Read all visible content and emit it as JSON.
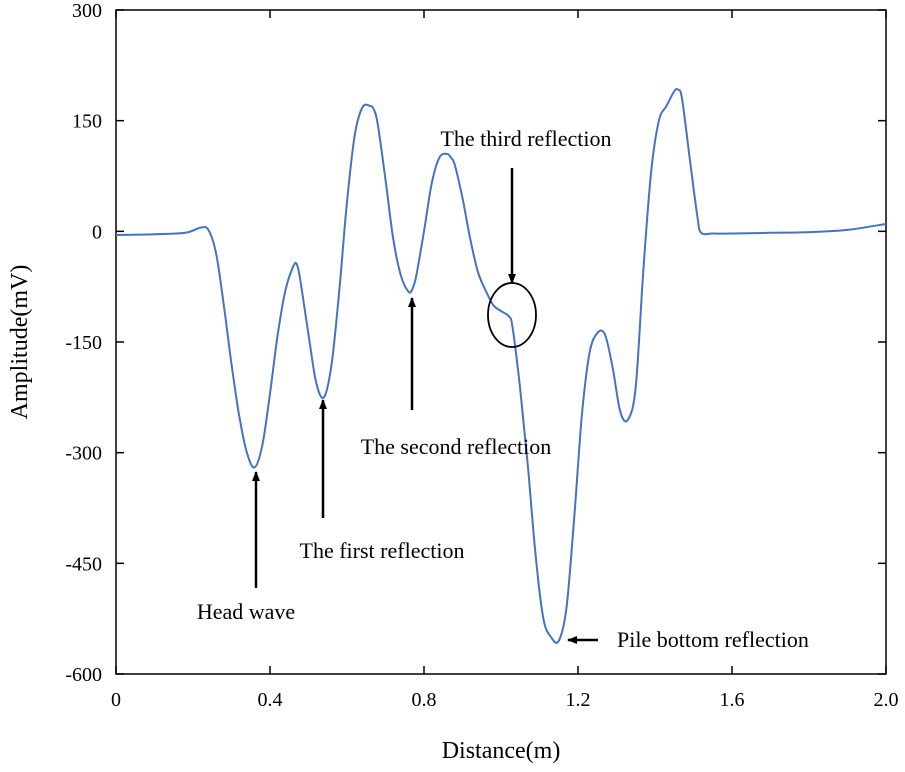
{
  "chart_data": {
    "type": "line",
    "title": "",
    "xlabel": "Distance(m)",
    "ylabel": "Amplitude(mV)",
    "xlim": [
      0,
      2.0
    ],
    "ylim": [
      -600,
      300
    ],
    "xticks": [
      0,
      0.4,
      0.8,
      1.2,
      1.6,
      2.0
    ],
    "xtick_labels": [
      "0",
      "0.4",
      "0.8",
      "1.2",
      "1.6",
      "2.0"
    ],
    "yticks": [
      300,
      150,
      0,
      -150,
      -300,
      -450,
      -600
    ],
    "ytick_labels": [
      "300",
      "150",
      "0",
      "-150",
      "-300",
      "-450",
      "-600"
    ],
    "grid": false,
    "series": [
      {
        "name": "signal",
        "color": "#4472C4",
        "x": [
          0,
          0.1,
          0.18,
          0.22,
          0.24,
          0.26,
          0.28,
          0.3,
          0.32,
          0.34,
          0.36,
          0.38,
          0.4,
          0.42,
          0.44,
          0.46,
          0.47,
          0.48,
          0.5,
          0.52,
          0.54,
          0.56,
          0.58,
          0.6,
          0.62,
          0.64,
          0.66,
          0.67,
          0.68,
          0.7,
          0.72,
          0.74,
          0.76,
          0.77,
          0.78,
          0.8,
          0.82,
          0.84,
          0.86,
          0.87,
          0.88,
          0.9,
          0.92,
          0.94,
          0.96,
          0.98,
          1.0,
          1.02,
          1.03,
          1.05,
          1.07,
          1.09,
          1.11,
          1.13,
          1.15,
          1.17,
          1.19,
          1.21,
          1.23,
          1.25,
          1.27,
          1.29,
          1.31,
          1.33,
          1.35,
          1.37,
          1.39,
          1.41,
          1.43,
          1.45,
          1.46,
          1.47,
          1.49,
          1.51,
          1.52,
          1.55,
          1.6,
          1.7,
          1.8,
          1.9,
          2.0
        ],
        "y": [
          -5,
          -4,
          -2,
          5,
          2,
          -30,
          -100,
          -180,
          -250,
          -300,
          -320,
          -290,
          -220,
          -140,
          -80,
          -48,
          -45,
          -70,
          -140,
          -205,
          -225,
          -180,
          -80,
          40,
          130,
          168,
          170,
          165,
          145,
          70,
          -10,
          -60,
          -82,
          -78,
          -60,
          0,
          65,
          100,
          105,
          100,
          90,
          45,
          -10,
          -55,
          -80,
          -100,
          -108,
          -115,
          -130,
          -215,
          -320,
          -440,
          -525,
          -550,
          -555,
          -510,
          -390,
          -250,
          -165,
          -138,
          -140,
          -185,
          -245,
          -255,
          -210,
          -50,
          80,
          150,
          170,
          190,
          192,
          180,
          100,
          20,
          -2,
          -3,
          -3,
          -2,
          -1,
          2,
          10
        ]
      }
    ],
    "annotations": [
      {
        "text": "Head wave",
        "target_x": 0.36,
        "target_y": -320
      },
      {
        "text": "The first reflection",
        "target_x": 0.54,
        "target_y": -225
      },
      {
        "text": "The second reflection",
        "target_x": 0.76,
        "target_y": -82
      },
      {
        "text": "The third reflection",
        "target_x": 1.03,
        "target_y": -115
      },
      {
        "text": "Pile bottom reflection",
        "target_x": 1.15,
        "target_y": -555
      }
    ]
  }
}
